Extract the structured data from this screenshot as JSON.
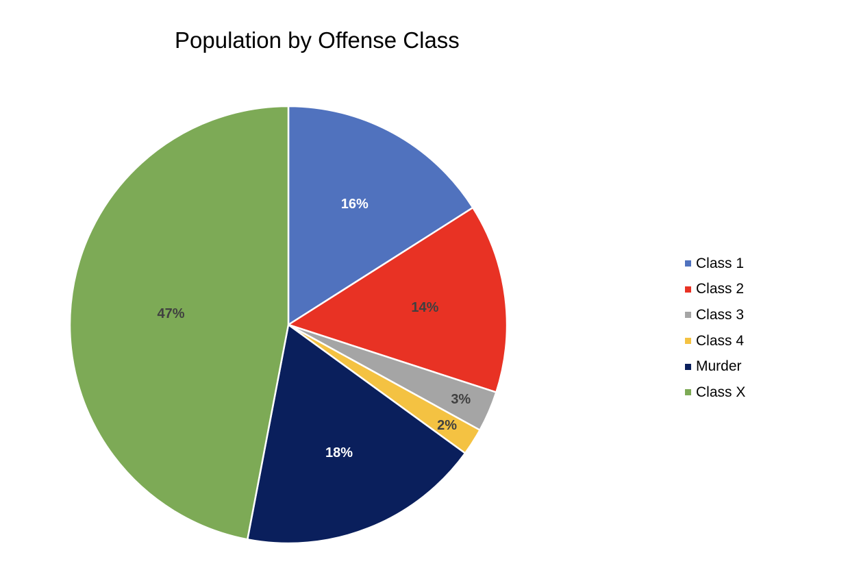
{
  "chart_data": {
    "type": "pie",
    "title": "Population by Offense Class",
    "categories": [
      "Class 1",
      "Class 2",
      "Class 3",
      "Class 4",
      "Murder",
      "Class X"
    ],
    "values": [
      16,
      14,
      3,
      2,
      18,
      47
    ],
    "value_labels": [
      "16%",
      "14%",
      "3%",
      "2%",
      "18%",
      "47%"
    ],
    "colors": [
      "#5072BE",
      "#E83224",
      "#A5A5A5",
      "#F4C242",
      "#0A1F5C",
      "#7DAA56"
    ],
    "label_colors": [
      "#FFFFFF",
      "#404040",
      "#404040",
      "#404040",
      "#FFFFFF",
      "#404040"
    ],
    "legend_position": "right",
    "start_angle": "top",
    "direction": "clockwise"
  }
}
